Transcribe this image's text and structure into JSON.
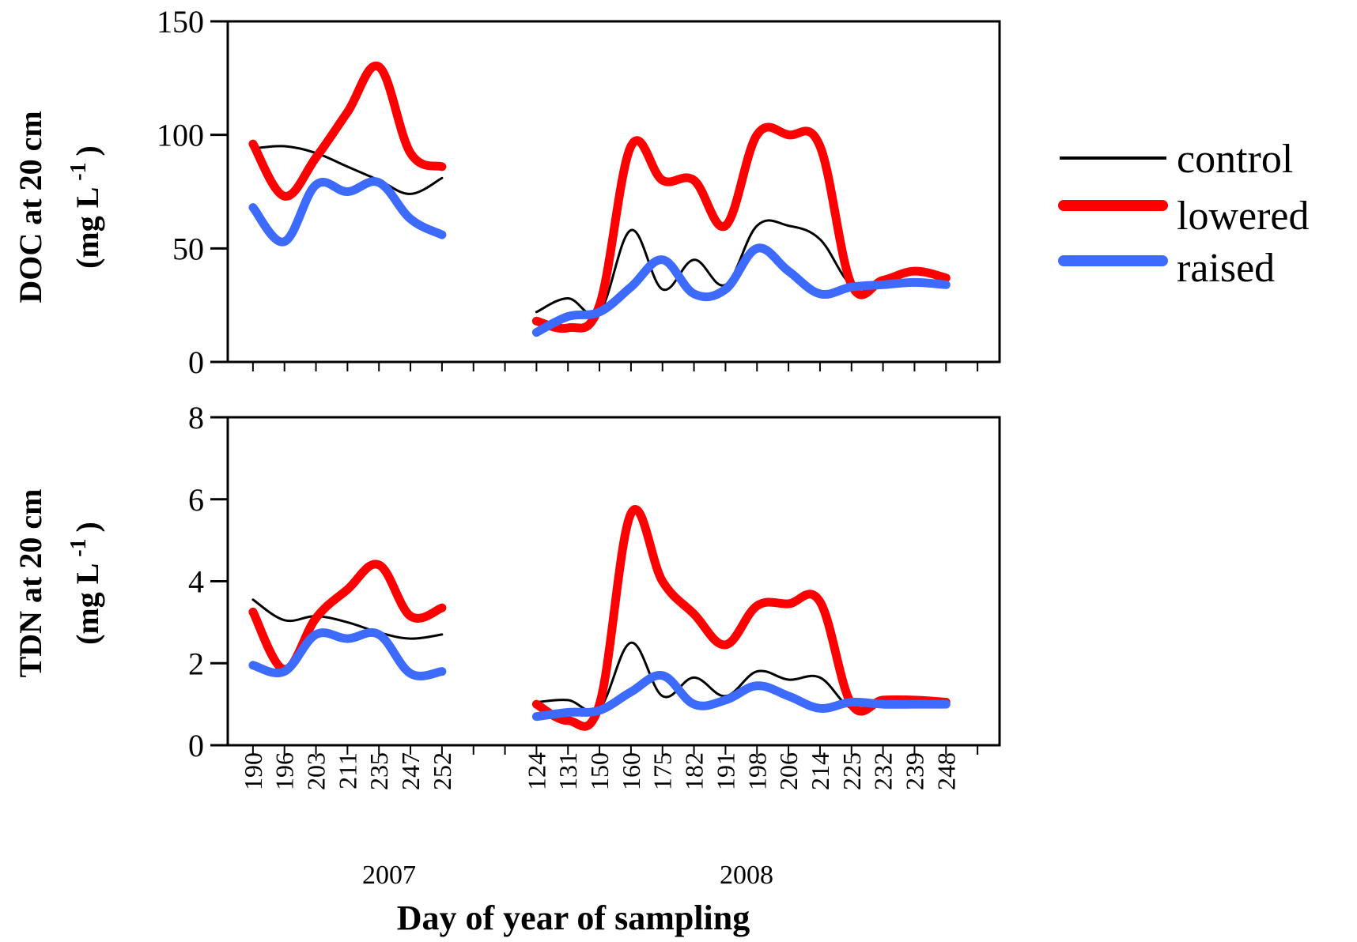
{
  "chart_data": [
    {
      "type": "line",
      "panel": "top",
      "ylabel": "DOC at 20 cm (mg L -1 )",
      "ylabel_line1": "DOC at 20 cm",
      "ylabel_line2": "(mg L",
      "ylabel_sup": "-1",
      "ylabel_close": ")",
      "ylim": [
        0,
        150
      ],
      "yticks": [
        "0",
        "50",
        "100",
        "150"
      ],
      "categories": [
        "190",
        "196",
        "203",
        "211",
        "235",
        "247",
        "252",
        "124",
        "131",
        "150",
        "160",
        "175",
        "182",
        "191",
        "198",
        "206",
        "214",
        "225",
        "232",
        "239",
        "248"
      ],
      "gap_after_index": 6,
      "series": [
        {
          "name": "control",
          "color": "#000000",
          "width": 3,
          "values": [
            94,
            95,
            92,
            86,
            80,
            74,
            81,
            22,
            28,
            22,
            58,
            32,
            45,
            34,
            60,
            60,
            54,
            34,
            35,
            36,
            35
          ]
        },
        {
          "name": "lowered",
          "color": "#ff0000",
          "width": 11,
          "values": [
            96,
            73,
            90,
            110,
            130,
            92,
            86,
            18,
            15,
            25,
            95,
            80,
            80,
            60,
            100,
            100,
            95,
            34,
            36,
            40,
            37
          ]
        },
        {
          "name": "raised",
          "color": "#3d6bff",
          "width": 11,
          "values": [
            68,
            53,
            78,
            75,
            79,
            63,
            56,
            13,
            20,
            22,
            33,
            45,
            30,
            32,
            50,
            40,
            30,
            33,
            34,
            35,
            34
          ]
        }
      ]
    },
    {
      "type": "line",
      "panel": "bottom",
      "ylabel": "TDN at 20 cm (mg L -1 )",
      "ylabel_line1": "TDN at 20 cm",
      "ylabel_line2": "(mg L",
      "ylabel_sup": "-1",
      "ylabel_close": ")",
      "ylim": [
        0,
        8
      ],
      "yticks": [
        "0",
        "2",
        "4",
        "6",
        "8"
      ],
      "categories": [
        "190",
        "196",
        "203",
        "211",
        "235",
        "247",
        "252",
        "124",
        "131",
        "150",
        "160",
        "175",
        "182",
        "191",
        "198",
        "206",
        "214",
        "225",
        "232",
        "239",
        "248"
      ],
      "gap_after_index": 6,
      "series": [
        {
          "name": "control",
          "color": "#000000",
          "width": 3,
          "values": [
            3.55,
            3.05,
            3.15,
            3.0,
            2.75,
            2.6,
            2.7,
            1.05,
            1.1,
            0.9,
            2.5,
            1.2,
            1.65,
            1.2,
            1.8,
            1.6,
            1.65,
            0.9,
            1.05,
            1.05,
            1.05
          ]
        },
        {
          "name": "lowered",
          "color": "#ff0000",
          "width": 11,
          "values": [
            3.25,
            1.85,
            3.1,
            3.8,
            4.4,
            3.15,
            3.35,
            1.0,
            0.6,
            1.0,
            5.65,
            4.0,
            3.2,
            2.45,
            3.4,
            3.45,
            3.5,
            1.0,
            1.1,
            1.1,
            1.05
          ]
        },
        {
          "name": "raised",
          "color": "#3d6bff",
          "width": 11,
          "values": [
            1.95,
            1.8,
            2.7,
            2.6,
            2.7,
            1.75,
            1.8,
            0.7,
            0.8,
            0.85,
            1.3,
            1.7,
            1.0,
            1.1,
            1.45,
            1.2,
            0.9,
            1.05,
            1.0,
            1.0,
            1.0
          ]
        }
      ]
    }
  ],
  "x_axis": {
    "tick_labels": [
      "190",
      "196",
      "203",
      "211",
      "235",
      "247",
      "252",
      "124",
      "131",
      "150",
      "160",
      "175",
      "182",
      "191",
      "198",
      "206",
      "214",
      "225",
      "232",
      "239",
      "248"
    ],
    "year_labels": [
      "2007",
      "2008"
    ],
    "xlabel": "Day of year of sampling"
  },
  "legend": {
    "placement": "right",
    "entries": [
      {
        "label": "control",
        "color": "#000000"
      },
      {
        "label": "lowered",
        "color": "#ff0000"
      },
      {
        "label": "raised",
        "color": "#3d6bff"
      }
    ]
  }
}
